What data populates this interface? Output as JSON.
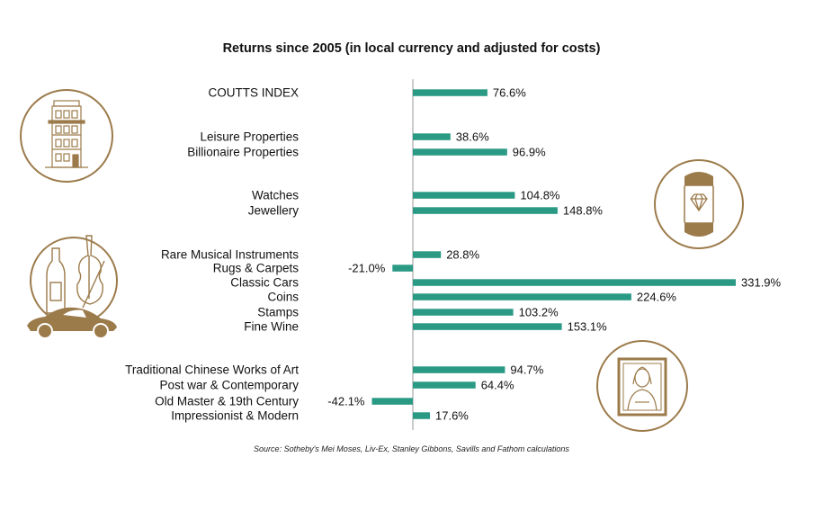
{
  "chart_data": {
    "type": "bar",
    "orientation": "horizontal",
    "title": "Returns since 2005 (in local currency and adjusted for costs)",
    "source": "Source: Sotheby's Mei Moses, Liv-Ex, Stanley Gibbons, Savills and Fathom calculations",
    "categories": [
      "COUTTS INDEX",
      "Leisure Properties",
      "Billionaire Properties",
      "Watches",
      "Jewellery",
      "Rare Musical Instruments",
      "Rugs & Carpets",
      "Classic Cars",
      "Coins",
      "Stamps",
      "Fine Wine",
      "Traditional Chinese Works of Art",
      "Post war & Contemporary",
      "Old Master & 19th Century",
      "Impressionist & Modern"
    ],
    "values": [
      76.6,
      38.6,
      96.9,
      104.8,
      148.8,
      28.8,
      -21.0,
      331.9,
      224.6,
      103.2,
      153.1,
      94.7,
      64.4,
      -42.1,
      17.6
    ],
    "value_labels": [
      "76.6%",
      "38.6%",
      "96.9%",
      "104.8%",
      "148.8%",
      "28.8%",
      "-21.0%",
      "331.9%",
      "224.6%",
      "103.2%",
      "153.1%",
      "94.7%",
      "64.4%",
      "-42.1%",
      "17.6%"
    ],
    "groups": [
      [
        0
      ],
      [
        1,
        2
      ],
      [
        3,
        4
      ],
      [
        5,
        6,
        7,
        8,
        9,
        10
      ],
      [
        11,
        12,
        13,
        14
      ]
    ],
    "bar_color": "#2a9a85",
    "axis_color": "#999999",
    "grid": false,
    "legend": "none"
  },
  "icons": [
    {
      "name": "townhouse-icon",
      "category_group": "property"
    },
    {
      "name": "smartwatch-diamond-icon",
      "category_group": "watches-jewellery"
    },
    {
      "name": "wine-violin-car-icon",
      "category_group": "collectibles"
    },
    {
      "name": "mona-lisa-painting-icon",
      "category_group": "art"
    }
  ],
  "colors": {
    "accent": "#2a9a85",
    "icon_gold": "#9c7b4b"
  }
}
